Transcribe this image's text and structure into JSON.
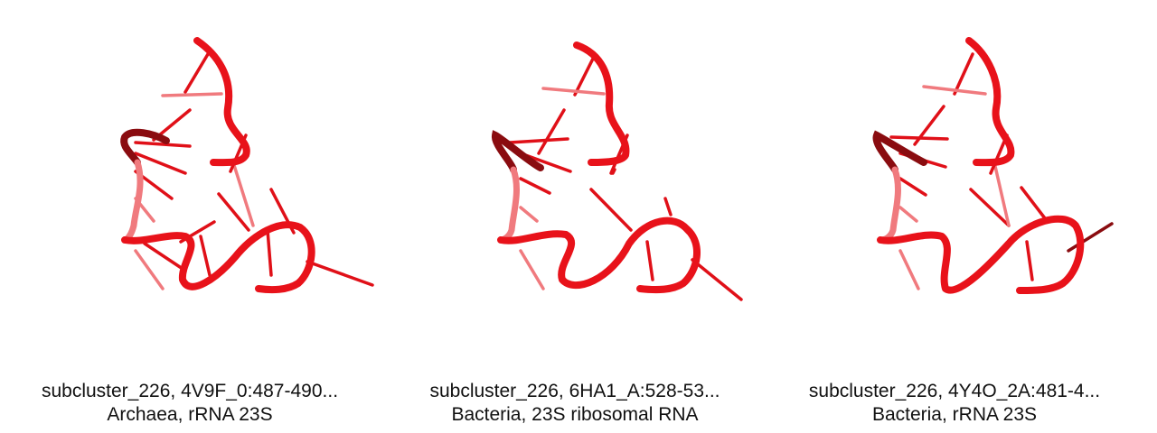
{
  "panels": [
    {
      "title": "subcluster_226, 4V9F_0:487-490...",
      "subtitle": "Archaea, rRNA 23S"
    },
    {
      "title": "subcluster_226, 6HA1_A:528-53...",
      "subtitle": "Bacteria, 23S ribosomal RNA"
    },
    {
      "title": "subcluster_226, 4Y4O_2A:481-4...",
      "subtitle": "Bacteria, rRNA 23S"
    }
  ],
  "colors": {
    "backbone": "#e8121a",
    "backbone_dark": "#8a0c10",
    "base": "#e01018",
    "base_light": "#f07a7e"
  }
}
